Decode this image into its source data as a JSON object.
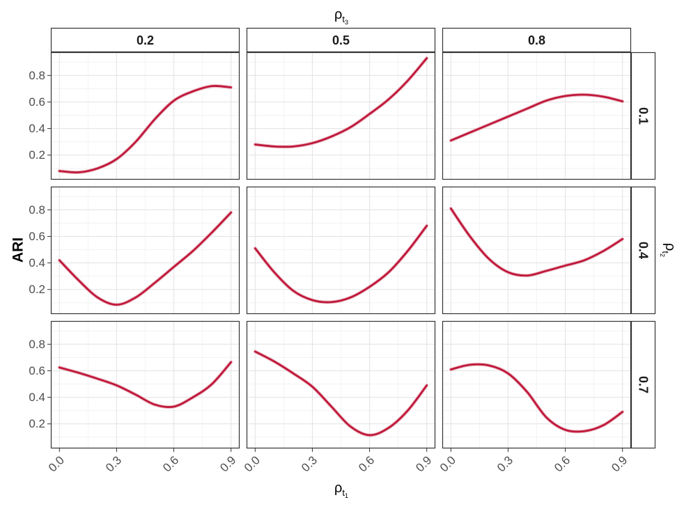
{
  "chart_data": {
    "type": "line",
    "facet": "grid",
    "y_title": "ARI",
    "x_title": {
      "symbol": "ρ",
      "subscript": "t",
      "subsubscript": "1"
    },
    "col_facet_title": {
      "symbol": "ρ",
      "subscript": "t",
      "subsubscript": "3"
    },
    "row_facet_title": {
      "symbol": "ρ",
      "subscript": "t",
      "subsubscript": "2"
    },
    "col_labels": [
      "0.2",
      "0.5",
      "0.8"
    ],
    "row_labels": [
      "0.1",
      "0.4",
      "0.7"
    ],
    "x_ticks": [
      "0.0",
      "0.3",
      "0.6",
      "0.9"
    ],
    "y_ticks": [
      "0.2",
      "0.4",
      "0.6",
      "0.8"
    ],
    "xlim": [
      -0.045,
      0.945
    ],
    "ylim": [
      0.015,
      0.975
    ],
    "grid": true,
    "line_color": "#c0183a",
    "panels": [
      {
        "row": "0.1",
        "col": "0.2",
        "x": [
          0,
          0.1,
          0.2,
          0.3,
          0.4,
          0.5,
          0.6,
          0.7,
          0.8,
          0.9
        ],
        "y": [
          0.08,
          0.07,
          0.1,
          0.17,
          0.3,
          0.47,
          0.61,
          0.68,
          0.72,
          0.71
        ]
      },
      {
        "row": "0.1",
        "col": "0.5",
        "x": [
          0,
          0.1,
          0.2,
          0.3,
          0.4,
          0.5,
          0.6,
          0.7,
          0.8,
          0.9
        ],
        "y": [
          0.28,
          0.265,
          0.265,
          0.29,
          0.34,
          0.41,
          0.51,
          0.62,
          0.76,
          0.93
        ]
      },
      {
        "row": "0.1",
        "col": "0.8",
        "x": [
          0,
          0.1,
          0.2,
          0.3,
          0.4,
          0.5,
          0.6,
          0.7,
          0.8,
          0.9
        ],
        "y": [
          0.31,
          0.37,
          0.43,
          0.49,
          0.55,
          0.61,
          0.645,
          0.655,
          0.64,
          0.605
        ]
      },
      {
        "row": "0.4",
        "col": "0.2",
        "x": [
          0,
          0.1,
          0.2,
          0.3,
          0.4,
          0.5,
          0.6,
          0.7,
          0.8,
          0.9
        ],
        "y": [
          0.42,
          0.27,
          0.14,
          0.085,
          0.14,
          0.25,
          0.37,
          0.49,
          0.63,
          0.78
        ]
      },
      {
        "row": "0.4",
        "col": "0.5",
        "x": [
          0,
          0.1,
          0.2,
          0.3,
          0.4,
          0.5,
          0.6,
          0.7,
          0.8,
          0.9
        ],
        "y": [
          0.51,
          0.33,
          0.19,
          0.12,
          0.105,
          0.14,
          0.22,
          0.33,
          0.49,
          0.68
        ]
      },
      {
        "row": "0.4",
        "col": "0.8",
        "x": [
          0,
          0.1,
          0.2,
          0.3,
          0.4,
          0.5,
          0.6,
          0.7,
          0.8,
          0.9
        ],
        "y": [
          0.81,
          0.6,
          0.43,
          0.33,
          0.305,
          0.34,
          0.38,
          0.42,
          0.49,
          0.58
        ]
      },
      {
        "row": "0.7",
        "col": "0.2",
        "x": [
          0,
          0.1,
          0.2,
          0.3,
          0.4,
          0.5,
          0.6,
          0.7,
          0.8,
          0.9
        ],
        "y": [
          0.625,
          0.585,
          0.54,
          0.49,
          0.42,
          0.345,
          0.33,
          0.4,
          0.5,
          0.665
        ]
      },
      {
        "row": "0.7",
        "col": "0.5",
        "x": [
          0,
          0.1,
          0.2,
          0.3,
          0.4,
          0.5,
          0.6,
          0.7,
          0.8,
          0.9
        ],
        "y": [
          0.745,
          0.67,
          0.58,
          0.48,
          0.33,
          0.18,
          0.115,
          0.17,
          0.3,
          0.49
        ]
      },
      {
        "row": "0.7",
        "col": "0.8",
        "x": [
          0,
          0.1,
          0.2,
          0.3,
          0.4,
          0.5,
          0.6,
          0.7,
          0.8,
          0.9
        ],
        "y": [
          0.61,
          0.645,
          0.64,
          0.58,
          0.44,
          0.25,
          0.155,
          0.145,
          0.19,
          0.29
        ]
      }
    ]
  }
}
